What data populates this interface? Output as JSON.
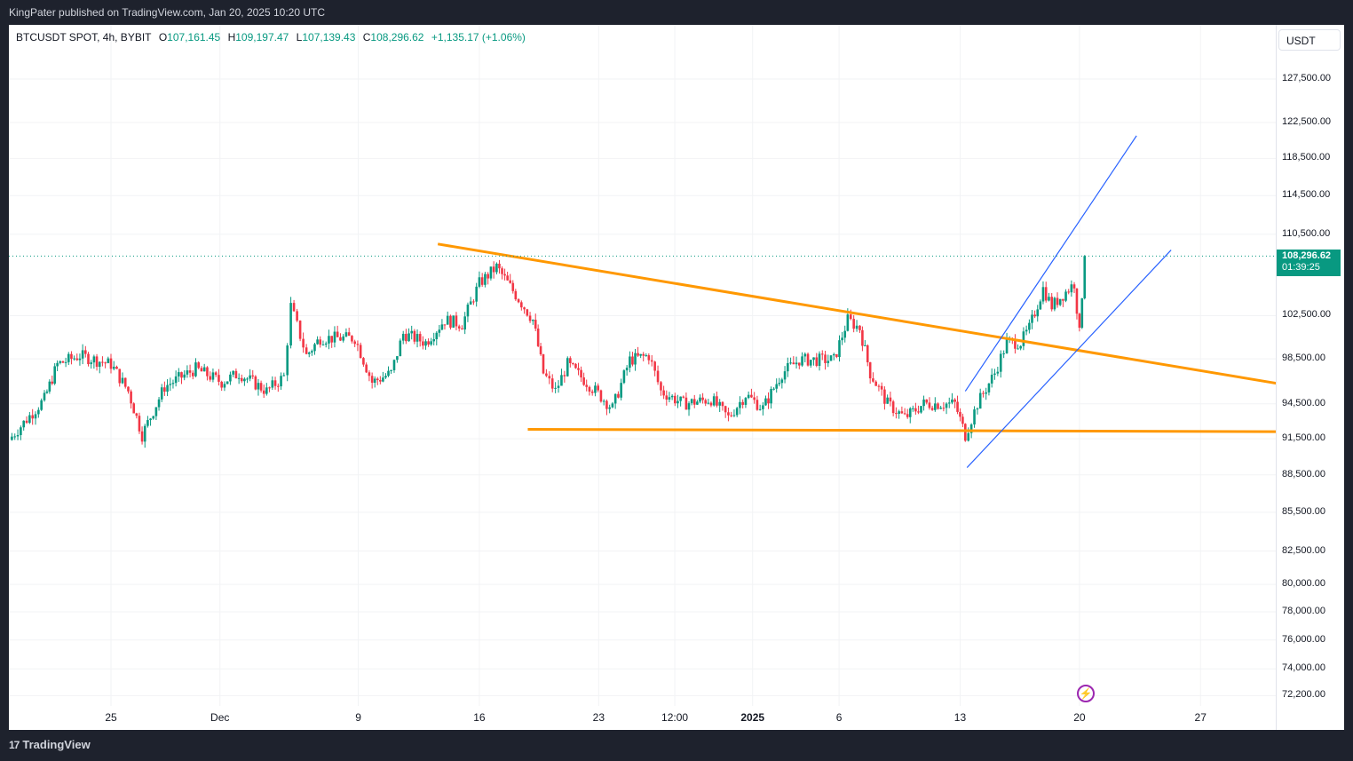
{
  "header": {
    "publisher": "KingPater published on TradingView.com, Jan 20, 2025 10:20 UTC"
  },
  "legend": {
    "symbol": "BTCUSDT SPOT, 4h, BYBIT",
    "o_label": "O",
    "o": "107,161.45",
    "h_label": "H",
    "h": "109,197.47",
    "l_label": "L",
    "l": "107,139.43",
    "c_label": "C",
    "c": "108,296.62",
    "change": "+1,135.17 (+1.06%)"
  },
  "currency_button": "USDT",
  "last_price": {
    "price": "108,296.62",
    "countdown": "01:39:25",
    "value": 108296.62
  },
  "footer": {
    "logo": "TradingView"
  },
  "colors": {
    "up": "#089981",
    "down": "#f23645",
    "trendline": "#ff9800",
    "channel": "#2962ff",
    "badge": "#089981"
  },
  "chart_data": {
    "type": "candlestick",
    "scale": "log",
    "x_unit": "days since Nov 25, 2024",
    "price_ticks": [
      127500,
      122500,
      118500,
      114500,
      110500,
      102500,
      98500,
      94500,
      91500,
      88500,
      85500,
      82500,
      80000,
      78000,
      76000,
      74000,
      72200
    ],
    "price_tick_labels": [
      "127,500.00",
      "122,500.00",
      "118,500.00",
      "114,500.00",
      "110,500.00",
      "102,500.00",
      "98,500.00",
      "94,500.00",
      "91,500.00",
      "88,500.00",
      "85,500.00",
      "82,500.00",
      "80,000.00",
      "78,000.00",
      "76,000.00",
      "74,000.00",
      "72,200.00"
    ],
    "time_ticks": [
      {
        "d": 0,
        "label": "25"
      },
      {
        "d": 6.3,
        "label": "Dec"
      },
      {
        "d": 14.3,
        "label": "9"
      },
      {
        "d": 21.3,
        "label": "16"
      },
      {
        "d": 28.2,
        "label": "23"
      },
      {
        "d": 32.6,
        "label": "12:00"
      },
      {
        "d": 37.1,
        "label": "2025",
        "bold": true
      },
      {
        "d": 42.1,
        "label": "6"
      },
      {
        "d": 49.1,
        "label": "13"
      },
      {
        "d": 56,
        "label": "20"
      },
      {
        "d": 63,
        "label": "27"
      }
    ],
    "path": [
      [
        -5.9,
        91400
      ],
      [
        -3.85,
        94900
      ],
      [
        -3.1,
        98000
      ],
      [
        -1.8,
        98800
      ],
      [
        0,
        98000
      ],
      [
        1.0,
        95600
      ],
      [
        1.8,
        91800
      ],
      [
        3.1,
        96000
      ],
      [
        4.9,
        97600
      ],
      [
        6.4,
        96400
      ],
      [
        7.4,
        97200
      ],
      [
        9.0,
        95600
      ],
      [
        10.0,
        96900
      ],
      [
        10.4,
        103400
      ],
      [
        11.3,
        98800
      ],
      [
        12.1,
        100400
      ],
      [
        14.1,
        100400
      ],
      [
        15.1,
        96400
      ],
      [
        16.2,
        97200
      ],
      [
        16.9,
        100800
      ],
      [
        18.2,
        100000
      ],
      [
        19.3,
        102100
      ],
      [
        20.3,
        101700
      ],
      [
        21.3,
        105600
      ],
      [
        22.3,
        107200
      ],
      [
        23.4,
        104500
      ],
      [
        24.4,
        102100
      ],
      [
        25.0,
        97200
      ],
      [
        25.7,
        95600
      ],
      [
        26.4,
        98000
      ],
      [
        27.5,
        96400
      ],
      [
        29.0,
        94100
      ],
      [
        30.0,
        98400
      ],
      [
        31.1,
        98800
      ],
      [
        31.8,
        95600
      ],
      [
        33.1,
        94500
      ],
      [
        34.7,
        94900
      ],
      [
        35.7,
        93300
      ],
      [
        36.7,
        95300
      ],
      [
        37.7,
        94100
      ],
      [
        38.8,
        97200
      ],
      [
        39.8,
        98400
      ],
      [
        41.8,
        98400
      ],
      [
        42.6,
        102100
      ],
      [
        43.3,
        101300
      ],
      [
        43.9,
        97200
      ],
      [
        44.9,
        94500
      ],
      [
        45.9,
        93300
      ],
      [
        47.0,
        94500
      ],
      [
        48.8,
        94500
      ],
      [
        49.4,
        91800
      ],
      [
        50.1,
        94500
      ],
      [
        51.1,
        97200
      ],
      [
        51.8,
        100000
      ],
      [
        52.6,
        100000
      ],
      [
        53.1,
        101300
      ],
      [
        53.9,
        105100
      ],
      [
        54.4,
        103400
      ],
      [
        55.7,
        105600
      ],
      [
        56.0,
        100800
      ],
      [
        56.3,
        108296.62
      ]
    ],
    "trendlines": [
      {
        "name": "descending resistance",
        "color": "#ff9800",
        "from": [
          18.9,
          109500
        ],
        "to": [
          67.4,
          96300
        ]
      },
      {
        "name": "horizontal support",
        "color": "#ff9800",
        "from": [
          24.1,
          92300
        ],
        "to": [
          67.4,
          92100
        ]
      },
      {
        "name": "channel upper",
        "color": "#2962ff",
        "from": [
          49.4,
          95600
        ],
        "to": [
          59.3,
          121000
        ]
      },
      {
        "name": "channel lower",
        "color": "#2962ff",
        "from": [
          49.5,
          89100
        ],
        "to": [
          61.3,
          108900
        ]
      }
    ]
  }
}
